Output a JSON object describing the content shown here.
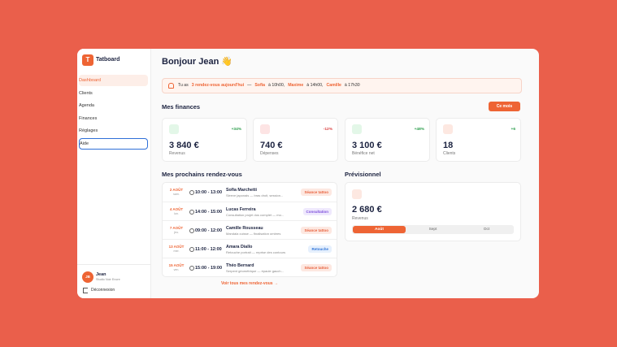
{
  "sidebar": {
    "logo": "T",
    "brand": "Tatboard",
    "nav": [
      "Dashboard",
      "Clients",
      "Agenda",
      "Finances",
      "Réglages",
      "Aide"
    ],
    "user": {
      "initials": "JB",
      "name": "Jean",
      "studio": "Studio Noir Encre"
    },
    "logout": "Déconnexion"
  },
  "header": {
    "greeting": "Bonjour Jean 👋"
  },
  "alert": {
    "parts": [
      "Tu as",
      "3 rendez-vous aujourd'hui",
      "—",
      "Sofia",
      "à 10h00,",
      "Maxime",
      "à 14h00,",
      "Camille",
      "à 17h30"
    ]
  },
  "finances": {
    "title": "Mes finances",
    "period": "Ce mois",
    "cards": [
      {
        "change": "+34%",
        "value": "3 840 €",
        "label": "Revenus"
      },
      {
        "change": "-12%",
        "value": "740 €",
        "label": "Dépenses"
      },
      {
        "change": "+48%",
        "value": "3 100 €",
        "label": "Bénéfice net"
      },
      {
        "change": "+6",
        "value": "18",
        "label": "Clients"
      }
    ]
  },
  "appointments": {
    "title": "Mes prochains rendez-vous",
    "rows": [
      {
        "date": "2 AOÛT",
        "day": "sam.",
        "time": "10:00 - 13:00",
        "name": "Sofia Marchetti",
        "desc": "Sleeve japonais — bras droit, session...",
        "tag": "Séance tattoo"
      },
      {
        "date": "4 AOÛT",
        "day": "lun.",
        "time": "14:00 - 15:00",
        "name": "Lucas Ferreira",
        "desc": "Consultation projet dos complet — mo...",
        "tag": "Consultation"
      },
      {
        "date": "7 AOÛT",
        "day": "jeu.",
        "time": "09:00 - 12:00",
        "name": "Camille Rousseau",
        "desc": "Mandala cuisse — finalisation ombres",
        "tag": "Séance tattoo"
      },
      {
        "date": "13 AOÛT",
        "day": "mer.",
        "time": "11:00 - 12:00",
        "name": "Amara Diallo",
        "desc": "Retouche portrait — reprise des contours",
        "tag": "Retouche"
      },
      {
        "date": "15 AOÛT",
        "day": "ven.",
        "time": "15:00 - 19:00",
        "name": "Théo Bernard",
        "desc": "Serpent géométrique — épaule gauch...",
        "tag": "Séance tattoo"
      }
    ],
    "link": "Voir tous mes rendez-vous →"
  },
  "forecast": {
    "title": "Prévisionnel",
    "value": "2 680 €",
    "label": "Revenus",
    "tabs": [
      "Août",
      "Sept",
      "Oct"
    ]
  }
}
